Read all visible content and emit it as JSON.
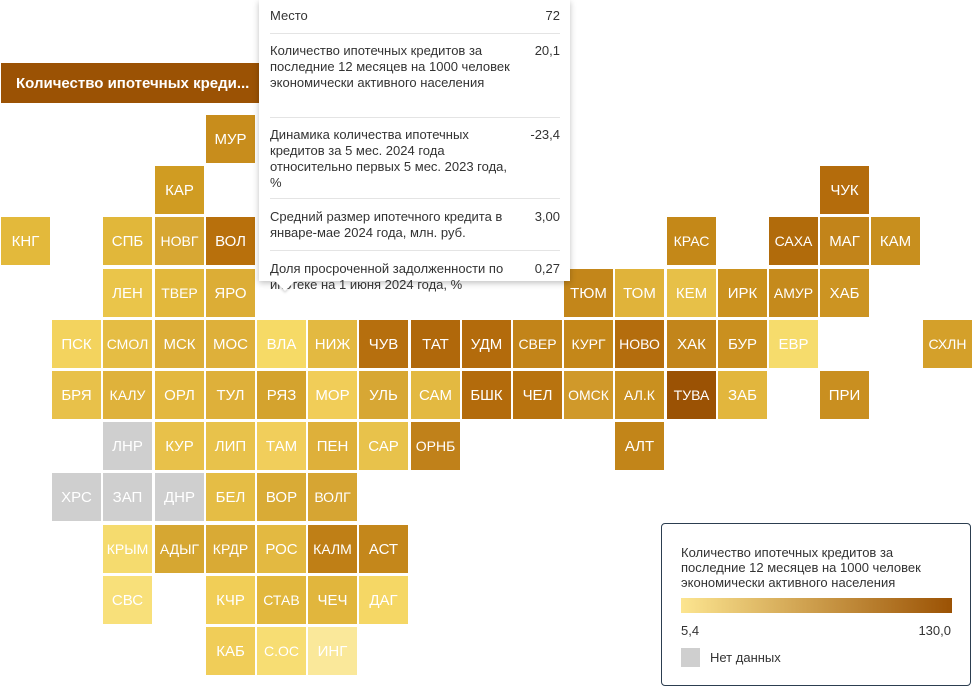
{
  "metric_button": "Количество ипотечных креди...",
  "tooltip": {
    "rows": [
      {
        "label": "Место",
        "value": "72"
      },
      {
        "label": "Количество ипотечных кредитов за последние 12 месяцев на 1000 человек экономически активного населения",
        "value": "20,1"
      },
      {
        "label": "Динамика количества ипотечных кредитов за 5 мес. 2024 года относительно первых 5 мес. 2023 года, %",
        "value": "-23,4"
      },
      {
        "label": "Средний размер ипотечного кредита в январе-мае 2024 года, млн. руб.",
        "value": "3,00"
      },
      {
        "label": "Доля просроченной задолженности по ипотеке на 1 июня 2024 года, %",
        "value": "0,27"
      }
    ]
  },
  "legend": {
    "title": "Количество ипотечных кредитов за последние 12 месяцев на 1000 человек экономически активного населения",
    "min_label": "5,4",
    "max_label": "130,0",
    "nodata_label": "Нет данных",
    "color_low": "#fce590",
    "color_high": "#9b5204",
    "nodata_color": "#cfcfcf"
  },
  "regions": [
    {
      "code": "МУР",
      "col": 4,
      "row": 0,
      "color": "#c88d1c"
    },
    {
      "code": "КАР",
      "col": 3,
      "row": 1,
      "color": "#d09c22"
    },
    {
      "code": "ЧУК",
      "col": 16,
      "row": 1,
      "color": "#b46c0c"
    },
    {
      "code": "КНГ",
      "col": 0,
      "row": 2,
      "color": "#e3b93b"
    },
    {
      "code": "СПБ",
      "col": 2,
      "row": 2,
      "color": "#e1b73a"
    },
    {
      "code": "НОВГ",
      "col": 3,
      "row": 2,
      "color": "#d7a733"
    },
    {
      "code": "ВОЛ",
      "col": 4,
      "row": 2,
      "color": "#b8700c"
    },
    {
      "code": "КРАС",
      "col": 13,
      "row": 2,
      "color": "#c48818"
    },
    {
      "code": "САХА",
      "col": 15,
      "row": 2,
      "color": "#b16b0b"
    },
    {
      "code": "МАГ",
      "col": 16,
      "row": 2,
      "color": "#c2841a"
    },
    {
      "code": "КАМ",
      "col": 17,
      "row": 2,
      "color": "#c88f1e"
    },
    {
      "code": "ЛЕН",
      "col": 2,
      "row": 3,
      "color": "#eac54a"
    },
    {
      "code": "ТВЕР",
      "col": 3,
      "row": 3,
      "color": "#e2b83c"
    },
    {
      "code": "ЯРО",
      "col": 4,
      "row": 3,
      "color": "#dcad36"
    },
    {
      "code": "ТЮМ",
      "col": 11,
      "row": 3,
      "color": "#c3861a"
    },
    {
      "code": "ТОМ",
      "col": 12,
      "row": 3,
      "color": "#e0b33a"
    },
    {
      "code": "КЕМ",
      "col": 13,
      "row": 3,
      "color": "#e7c048"
    },
    {
      "code": "ИРК",
      "col": 14,
      "row": 3,
      "color": "#cb921f"
    },
    {
      "code": "АМУР",
      "col": 15,
      "row": 3,
      "color": "#c58a1c"
    },
    {
      "code": "ХАБ",
      "col": 16,
      "row": 3,
      "color": "#cc9422"
    },
    {
      "code": "ПСК",
      "col": 1,
      "row": 4,
      "color": "#f3d35e"
    },
    {
      "code": "СМОЛ",
      "col": 2,
      "row": 4,
      "color": "#e5bd44"
    },
    {
      "code": "МСК",
      "col": 3,
      "row": 4,
      "color": "#dcae38"
    },
    {
      "code": "МОС",
      "col": 4,
      "row": 4,
      "color": "#deb03a"
    },
    {
      "code": "ВЛА",
      "col": 5,
      "row": 4,
      "color": "#f6da66"
    },
    {
      "code": "НИЖ",
      "col": 6,
      "row": 4,
      "color": "#e3b941"
    },
    {
      "code": "ЧУВ",
      "col": 7,
      "row": 4,
      "color": "#b66f0e"
    },
    {
      "code": "ТАТ",
      "col": 8,
      "row": 4,
      "color": "#b0680b"
    },
    {
      "code": "УДМ",
      "col": 9,
      "row": 4,
      "color": "#b36b0c"
    },
    {
      "code": "СВЕР",
      "col": 10,
      "row": 4,
      "color": "#c28419"
    },
    {
      "code": "КУРГ",
      "col": 11,
      "row": 4,
      "color": "#c48719"
    },
    {
      "code": "НОВО",
      "col": 12,
      "row": 4,
      "color": "#b46d0d"
    },
    {
      "code": "ХАК",
      "col": 13,
      "row": 4,
      "color": "#c2851b"
    },
    {
      "code": "БУР",
      "col": 14,
      "row": 4,
      "color": "#ca901f"
    },
    {
      "code": "ЕВР",
      "col": 15,
      "row": 4,
      "color": "#f6dc6c"
    },
    {
      "code": "СХЛН",
      "col": 18,
      "row": 4,
      "color": "#d4a02a"
    },
    {
      "code": "БРЯ",
      "col": 1,
      "row": 5,
      "color": "#e8c14a"
    },
    {
      "code": "КАЛУ",
      "col": 2,
      "row": 5,
      "color": "#dfb23b"
    },
    {
      "code": "ОРЛ",
      "col": 3,
      "row": 5,
      "color": "#e3b83f"
    },
    {
      "code": "ТУЛ",
      "col": 4,
      "row": 5,
      "color": "#deb03a"
    },
    {
      "code": "РЯЗ",
      "col": 5,
      "row": 5,
      "color": "#d4a32e"
    },
    {
      "code": "МОР",
      "col": 6,
      "row": 5,
      "color": "#f1cd58"
    },
    {
      "code": "УЛЬ",
      "col": 7,
      "row": 5,
      "color": "#d7a734"
    },
    {
      "code": "САМ",
      "col": 8,
      "row": 5,
      "color": "#e3b941"
    },
    {
      "code": "БШК",
      "col": 9,
      "row": 5,
      "color": "#b36b0c"
    },
    {
      "code": "ЧЕЛ",
      "col": 10,
      "row": 5,
      "color": "#b8730f"
    },
    {
      "code": "ОМСК",
      "col": 11,
      "row": 5,
      "color": "#d0992a"
    },
    {
      "code": "АЛ.К",
      "col": 12,
      "row": 5,
      "color": "#c9901f"
    },
    {
      "code": "ТУВА",
      "col": 13,
      "row": 5,
      "color": "#9b5204"
    },
    {
      "code": "ЗАБ",
      "col": 14,
      "row": 5,
      "color": "#e2b63d"
    },
    {
      "code": "ПРИ",
      "col": 16,
      "row": 5,
      "color": "#c98f20"
    },
    {
      "code": "ЛНР",
      "col": 2,
      "row": 6,
      "color": "#cfcfcf"
    },
    {
      "code": "КУР",
      "col": 3,
      "row": 6,
      "color": "#e8c14a"
    },
    {
      "code": "ЛИП",
      "col": 4,
      "row": 6,
      "color": "#e8c24b"
    },
    {
      "code": "ТАМ",
      "col": 5,
      "row": 6,
      "color": "#f1ce5b"
    },
    {
      "code": "ПЕН",
      "col": 6,
      "row": 6,
      "color": "#deb03a"
    },
    {
      "code": "САР",
      "col": 7,
      "row": 6,
      "color": "#e8c24b"
    },
    {
      "code": "ОРНБ",
      "col": 8,
      "row": 6,
      "color": "#c0811a"
    },
    {
      "code": "АЛТ",
      "col": 12,
      "row": 6,
      "color": "#c28519"
    },
    {
      "code": "ХРС",
      "col": 1,
      "row": 7,
      "color": "#cfcfcf"
    },
    {
      "code": "ЗАП",
      "col": 2,
      "row": 7,
      "color": "#cfcfcf"
    },
    {
      "code": "ДНР",
      "col": 3,
      "row": 7,
      "color": "#cfcfcf"
    },
    {
      "code": "БЕЛ",
      "col": 4,
      "row": 7,
      "color": "#e5bd45"
    },
    {
      "code": "ВОР",
      "col": 5,
      "row": 7,
      "color": "#d9ab36"
    },
    {
      "code": "ВОЛГ",
      "col": 6,
      "row": 7,
      "color": "#d6a533"
    },
    {
      "code": "КРЫМ",
      "col": 2,
      "row": 8,
      "color": "#f5db6e"
    },
    {
      "code": "АДЫГ",
      "col": 3,
      "row": 8,
      "color": "#d6a732"
    },
    {
      "code": "КРДР",
      "col": 4,
      "row": 8,
      "color": "#d9aa35"
    },
    {
      "code": "РОС",
      "col": 5,
      "row": 8,
      "color": "#e3b941"
    },
    {
      "code": "КАЛМ",
      "col": 6,
      "row": 8,
      "color": "#bf7f16"
    },
    {
      "code": "АСТ",
      "col": 7,
      "row": 8,
      "color": "#c4871b"
    },
    {
      "code": "СВС",
      "col": 2,
      "row": 9,
      "color": "#f8e07a"
    },
    {
      "code": "КЧР",
      "col": 4,
      "row": 9,
      "color": "#f1ce57"
    },
    {
      "code": "СТАВ",
      "col": 5,
      "row": 9,
      "color": "#e2b83e"
    },
    {
      "code": "ЧЕЧ",
      "col": 6,
      "row": 9,
      "color": "#e1b63d"
    },
    {
      "code": "ДАГ",
      "col": 7,
      "row": 9,
      "color": "#f5d765"
    },
    {
      "code": "КАБ",
      "col": 4,
      "row": 10,
      "color": "#f0cd58"
    },
    {
      "code": "С.ОС",
      "col": 5,
      "row": 10,
      "color": "#f7dd73"
    },
    {
      "code": "ИНГ",
      "col": 6,
      "row": 10,
      "color": "#fae89a"
    }
  ]
}
